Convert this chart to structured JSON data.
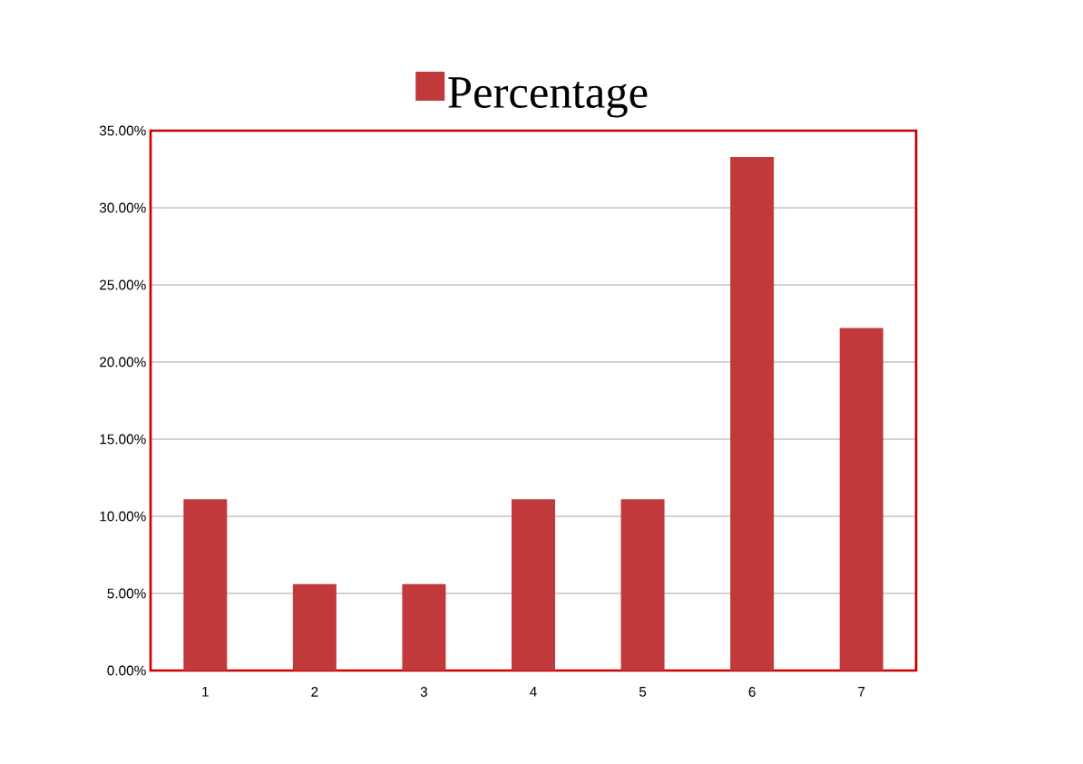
{
  "chart_data": {
    "type": "bar",
    "categories": [
      "1",
      "2",
      "3",
      "4",
      "5",
      "6",
      "7"
    ],
    "series": [
      {
        "name": "Percentage",
        "color": "#c0393b",
        "values": [
          11.1,
          5.6,
          5.6,
          11.1,
          11.1,
          33.3,
          22.2
        ]
      }
    ],
    "ylim": [
      0,
      35
    ],
    "yticks": [
      {
        "value": 0,
        "label": "0.00%"
      },
      {
        "value": 5,
        "label": "5.00%"
      },
      {
        "value": 10,
        "label": "10.00%"
      },
      {
        "value": 15,
        "label": "15.00%"
      },
      {
        "value": 20,
        "label": "20.00%"
      },
      {
        "value": 25,
        "label": "25.00%"
      },
      {
        "value": 30,
        "label": "30.00%"
      },
      {
        "value": 35,
        "label": "35.00%"
      }
    ],
    "grid": "y",
    "legend": "top"
  }
}
